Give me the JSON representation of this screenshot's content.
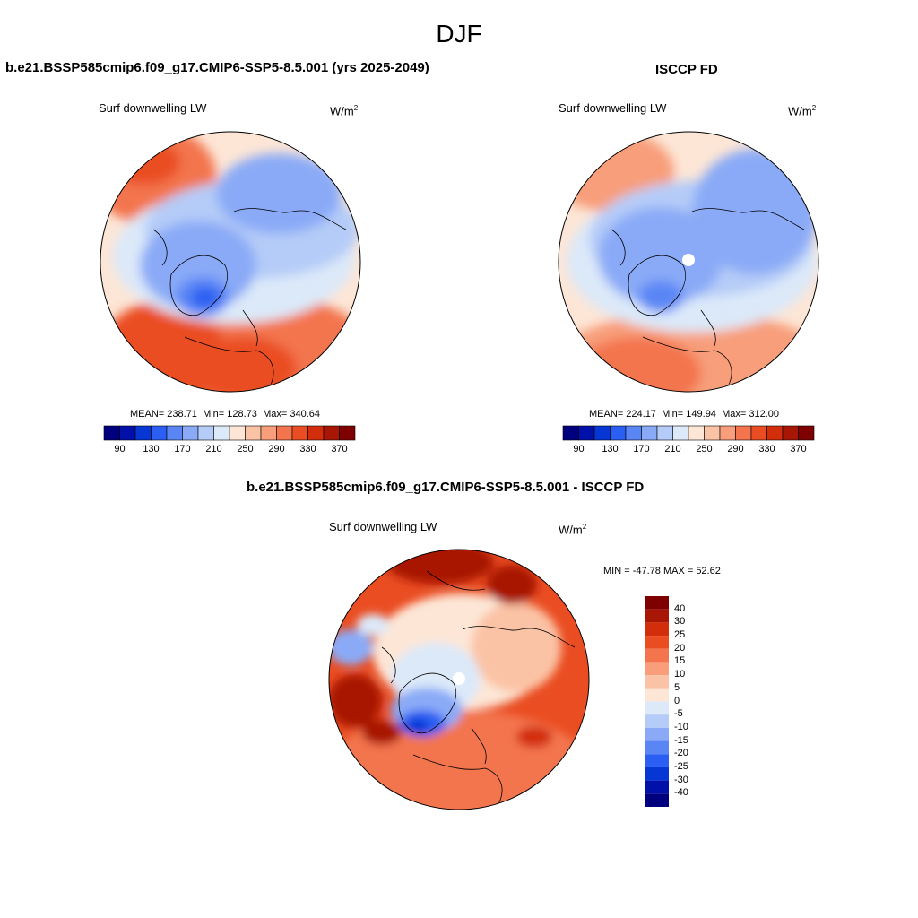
{
  "page": {
    "title": "DJF"
  },
  "panels": {
    "model": {
      "title": "b.e21.BSSP585cmip6.f09_g17.CMIP6-SSP5-8.5.001 (yrs 2025-2049)",
      "variable": "Surf downwelling LW",
      "units_base": "W/m",
      "units_exp": "2",
      "mean_label": "MEAN=",
      "mean": "238.71",
      "min_label": "Min=",
      "min": "128.73",
      "max_label": "Max=",
      "max": "340.64"
    },
    "obs": {
      "title": "ISCCP FD",
      "variable": "Surf downwelling LW",
      "units_base": "W/m",
      "units_exp": "2",
      "mean_label": "MEAN=",
      "mean": "224.17",
      "min_label": "Min=",
      "min": "149.94",
      "max_label": "Max=",
      "max": "312.00"
    },
    "diff": {
      "title": "b.e21.BSSP585cmip6.f09_g17.CMIP6-SSP5-8.5.001 - ISCCP FD",
      "variable": "Surf downwelling LW",
      "units_base": "W/m",
      "units_exp": "2",
      "range_text": "MIN = -47.78 MAX =  52.62"
    }
  },
  "colorbars": {
    "absolute": {
      "colors": [
        "#00007f",
        "#0010a8",
        "#0636d4",
        "#2b5ef2",
        "#5a86f5",
        "#8aaaf7",
        "#b5ccf8",
        "#dce9f9",
        "#fde6d6",
        "#fbc3a5",
        "#f89e7a",
        "#f3744d",
        "#ea4d22",
        "#d32e0c",
        "#a81706",
        "#7f0000"
      ],
      "tick_labels": [
        "90",
        "130",
        "170",
        "210",
        "250",
        "290",
        "330",
        "370"
      ]
    },
    "difference": {
      "colors": [
        "#00007f",
        "#0010a8",
        "#0636d4",
        "#2b5ef2",
        "#5a86f5",
        "#8aaaf7",
        "#b5ccf8",
        "#dce9f9",
        "#fde6d6",
        "#fbc3a5",
        "#f89e7a",
        "#f3744d",
        "#ea4d22",
        "#d32e0c",
        "#a81706",
        "#7f0000"
      ],
      "tick_labels": [
        "40",
        "30",
        "25",
        "20",
        "15",
        "10",
        "5",
        "0",
        "-5",
        "-10",
        "-15",
        "-20",
        "-25",
        "-30",
        "-40"
      ]
    }
  }
}
